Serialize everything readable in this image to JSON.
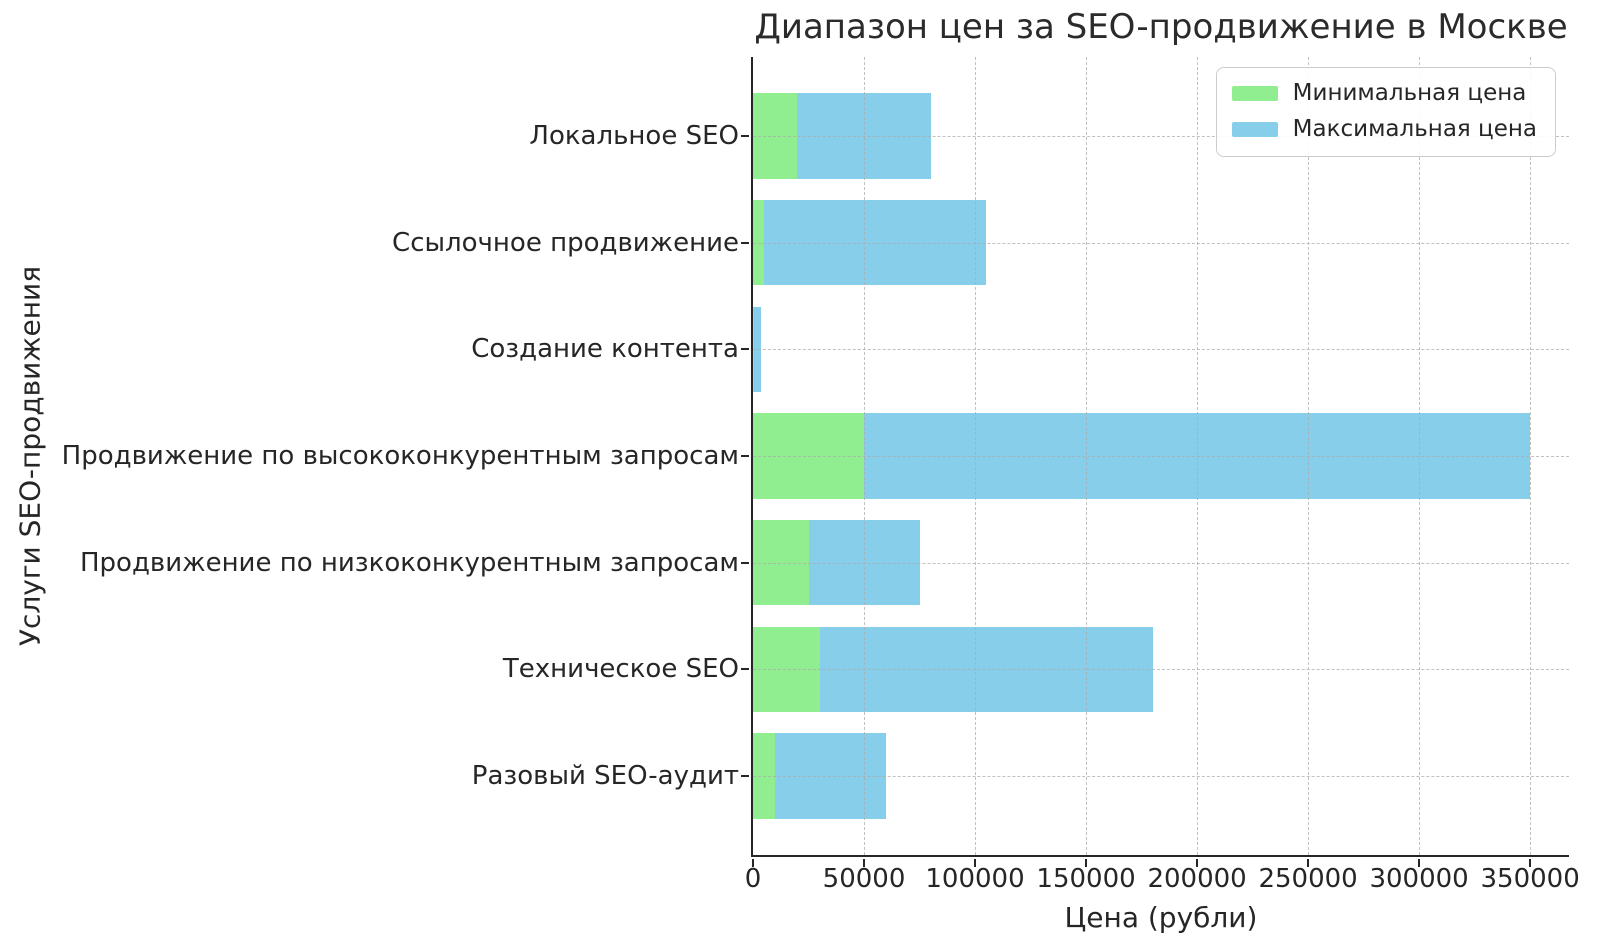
{
  "chart_data": {
    "type": "bar",
    "orientation": "horizontal",
    "title": "Диапазон цен за SEO-продвижение в Москве",
    "xlabel": "Цена (рубли)",
    "ylabel": "Услуги SEO-продвижения",
    "categories": [
      "Локальное SEO",
      "Ссылочное продвижение",
      "Создание контента",
      "Продвижение по высококонкурентным запросам",
      "Продвижение по низкоконкурентным запросам",
      "Техническое SEO",
      "Разовый SEO-аудит"
    ],
    "series": [
      {
        "name": "Минимальная цена",
        "color": "#90EE90",
        "values": [
          20000,
          5000,
          500,
          50000,
          25000,
          30000,
          10000
        ]
      },
      {
        "name": "Максимальная цена",
        "color": "#87CEEB",
        "values": [
          60000,
          100000,
          3000,
          300000,
          50000,
          150000,
          50000
        ]
      }
    ],
    "stacking": "stacked (max-bar drawn starting at min value)",
    "bar_right_edges_rendered": [
      80000,
      105000,
      3500,
      350000,
      75000,
      180000,
      60000
    ],
    "xticks": [
      0,
      50000,
      100000,
      150000,
      200000,
      250000,
      300000,
      350000
    ],
    "xlim": [
      0,
      367500
    ],
    "grid": "dashed, both axes, drawn over bars",
    "legend_position": "upper right",
    "colors": {
      "min_bar": "#90EE90",
      "max_bar": "#87CEEB",
      "grid": "#acacac",
      "text": "#262626",
      "spine": "#262626",
      "background": "#ffffff"
    }
  }
}
